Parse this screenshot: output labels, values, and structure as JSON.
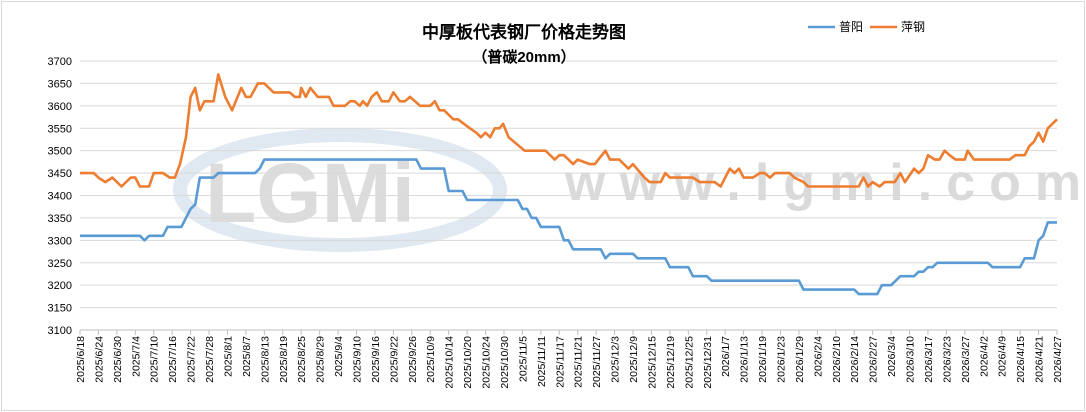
{
  "chart_data": {
    "type": "line",
    "title": "中厚板代表钢厂价格走势图",
    "subtitle": "（普碳20mm）",
    "xlabel": "",
    "ylabel": "",
    "ylim": [
      3100,
      3700
    ],
    "yticks": [
      3100,
      3150,
      3200,
      3250,
      3300,
      3350,
      3400,
      3450,
      3500,
      3550,
      3600,
      3650,
      3700
    ],
    "grid": true,
    "legend_position": "top-right",
    "x_point_count": 213,
    "categories": [
      "2025/6/18",
      "2025/6/24",
      "2025/6/30",
      "2025/7/4",
      "2025/7/10",
      "2025/7/16",
      "2025/7/22",
      "2025/7/28",
      "2025/8/1",
      "2025/8/7",
      "2025/8/13",
      "2025/8/19",
      "2025/8/25",
      "2025/8/29",
      "2025/9/4",
      "2025/9/10",
      "2025/9/16",
      "2025/9/22",
      "2025/9/26",
      "2025/10/9",
      "2025/10/14",
      "2025/10/20",
      "2025/10/24",
      "2025/10/30",
      "2025/11/5",
      "2025/11/11",
      "2025/11/17",
      "2025/11/21",
      "2025/11/27",
      "2025/12/3",
      "2025/12/9",
      "2025/12/15",
      "2025/12/19",
      "2025/12/25",
      "2025/12/31",
      "2026/1/7",
      "2026/1/13",
      "2026/1/19",
      "2026/1/23",
      "2026/1/29",
      "2026/2/4",
      "2026/2/10",
      "2026/2/14",
      "2026/2/27",
      "2026/3/4",
      "2026/3/10",
      "2026/3/17",
      "2026/3/23",
      "2026/3/27",
      "2026/4/2",
      "2026/4/9",
      "2026/4/15",
      "2026/4/21",
      "2026/4/27"
    ],
    "series": [
      {
        "name": "普阳",
        "color": "#5B9BD5",
        "points": [
          [
            0,
            3310
          ],
          [
            13,
            3310
          ],
          [
            14,
            3300
          ],
          [
            15,
            3310
          ],
          [
            18,
            3310
          ],
          [
            19,
            3330
          ],
          [
            22,
            3330
          ],
          [
            23,
            3350
          ],
          [
            24,
            3370
          ],
          [
            25,
            3380
          ],
          [
            26,
            3440
          ],
          [
            29,
            3440
          ],
          [
            30,
            3450
          ],
          [
            38,
            3450
          ],
          [
            39,
            3460
          ],
          [
            40,
            3480
          ],
          [
            73,
            3480
          ],
          [
            74,
            3460
          ],
          [
            79,
            3460
          ],
          [
            80,
            3410
          ],
          [
            83,
            3410
          ],
          [
            84,
            3390
          ],
          [
            95,
            3390
          ],
          [
            96,
            3370
          ],
          [
            97,
            3370
          ],
          [
            98,
            3350
          ],
          [
            99,
            3350
          ],
          [
            100,
            3330
          ],
          [
            104,
            3330
          ],
          [
            105,
            3300
          ],
          [
            106,
            3300
          ],
          [
            107,
            3280
          ],
          [
            113,
            3280
          ],
          [
            114,
            3260
          ],
          [
            115,
            3270
          ],
          [
            120,
            3270
          ],
          [
            121,
            3260
          ],
          [
            127,
            3260
          ],
          [
            128,
            3240
          ],
          [
            132,
            3240
          ],
          [
            133,
            3220
          ],
          [
            136,
            3220
          ],
          [
            137,
            3210
          ],
          [
            156,
            3210
          ],
          [
            157,
            3190
          ],
          [
            168,
            3190
          ],
          [
            169,
            3180
          ],
          [
            173,
            3180
          ],
          [
            174,
            3200
          ],
          [
            176,
            3200
          ],
          [
            177,
            3210
          ],
          [
            178,
            3220
          ],
          [
            181,
            3220
          ],
          [
            182,
            3230
          ],
          [
            183,
            3230
          ],
          [
            184,
            3240
          ],
          [
            185,
            3240
          ],
          [
            186,
            3250
          ],
          [
            197,
            3250
          ],
          [
            198,
            3240
          ],
          [
            204,
            3240
          ],
          [
            205,
            3260
          ],
          [
            207,
            3260
          ],
          [
            208,
            3300
          ],
          [
            209,
            3310
          ],
          [
            210,
            3340
          ],
          [
            212,
            3340
          ]
        ]
      },
      {
        "name": "萍钢",
        "color": "#ED7D31",
        "points": [
          [
            0,
            3450
          ],
          [
            3,
            3450
          ],
          [
            4,
            3440
          ],
          [
            5.5,
            3430
          ],
          [
            7,
            3440
          ],
          [
            9,
            3420
          ],
          [
            11,
            3440
          ],
          [
            12,
            3440
          ],
          [
            13,
            3420
          ],
          [
            15,
            3420
          ],
          [
            16,
            3450
          ],
          [
            18,
            3450
          ],
          [
            19.5,
            3440
          ],
          [
            20.6,
            3440
          ],
          [
            21.7,
            3470
          ],
          [
            23,
            3530
          ],
          [
            24,
            3620
          ],
          [
            25,
            3640
          ],
          [
            26,
            3590
          ],
          [
            27,
            3610
          ],
          [
            29,
            3610
          ],
          [
            30,
            3670
          ],
          [
            31.5,
            3620
          ],
          [
            33,
            3590
          ],
          [
            35,
            3640
          ],
          [
            36,
            3620
          ],
          [
            37,
            3620
          ],
          [
            38.6,
            3650
          ],
          [
            40,
            3650
          ],
          [
            42,
            3630
          ],
          [
            45.5,
            3630
          ],
          [
            46.6,
            3620
          ],
          [
            47.7,
            3620
          ],
          [
            48,
            3640
          ],
          [
            49,
            3620
          ],
          [
            50,
            3640
          ],
          [
            51.6,
            3620
          ],
          [
            54,
            3620
          ],
          [
            55,
            3600
          ],
          [
            57.5,
            3600
          ],
          [
            58.6,
            3610
          ],
          [
            59.6,
            3610
          ],
          [
            60.7,
            3600
          ],
          [
            61.4,
            3610
          ],
          [
            62.3,
            3600
          ],
          [
            63.3,
            3620
          ],
          [
            64.4,
            3630
          ],
          [
            65.5,
            3610
          ],
          [
            67,
            3610
          ],
          [
            68,
            3630
          ],
          [
            69.4,
            3610
          ],
          [
            70.5,
            3610
          ],
          [
            71.6,
            3620
          ],
          [
            73.8,
            3600
          ],
          [
            76,
            3600
          ],
          [
            77,
            3610
          ],
          [
            78,
            3590
          ],
          [
            79,
            3590
          ],
          [
            81,
            3570
          ],
          [
            82,
            3570
          ],
          [
            84.6,
            3550
          ],
          [
            86,
            3540
          ],
          [
            87,
            3530
          ],
          [
            88,
            3540
          ],
          [
            89,
            3530
          ],
          [
            90,
            3550
          ],
          [
            91,
            3550
          ],
          [
            91.8,
            3560
          ],
          [
            93,
            3530
          ],
          [
            96.5,
            3500
          ],
          [
            101,
            3500
          ],
          [
            103,
            3480
          ],
          [
            104,
            3490
          ],
          [
            105,
            3490
          ],
          [
            106,
            3480
          ],
          [
            107,
            3470
          ],
          [
            108,
            3480
          ],
          [
            110.6,
            3470
          ],
          [
            111.7,
            3470
          ],
          [
            114,
            3500
          ],
          [
            115,
            3480
          ],
          [
            117,
            3480
          ],
          [
            119,
            3460
          ],
          [
            120,
            3470
          ],
          [
            122.5,
            3440
          ],
          [
            123.6,
            3430
          ],
          [
            126,
            3430
          ],
          [
            127,
            3450
          ],
          [
            128,
            3440
          ],
          [
            133,
            3440
          ],
          [
            134.5,
            3430
          ],
          [
            137.7,
            3430
          ],
          [
            139,
            3420
          ],
          [
            141,
            3460
          ],
          [
            142,
            3450
          ],
          [
            143,
            3460
          ],
          [
            144,
            3440
          ],
          [
            146,
            3440
          ],
          [
            147.5,
            3450
          ],
          [
            148.6,
            3450
          ],
          [
            149.7,
            3440
          ],
          [
            150.8,
            3450
          ],
          [
            154,
            3450
          ],
          [
            155,
            3440
          ],
          [
            157,
            3430
          ],
          [
            158,
            3420
          ],
          [
            169,
            3420
          ],
          [
            170,
            3440
          ],
          [
            171,
            3420
          ],
          [
            172,
            3430
          ],
          [
            173.5,
            3420
          ],
          [
            174.6,
            3430
          ],
          [
            176.8,
            3430
          ],
          [
            178,
            3450
          ],
          [
            179,
            3430
          ],
          [
            181,
            3460
          ],
          [
            182,
            3450
          ],
          [
            183,
            3460
          ],
          [
            184,
            3490
          ],
          [
            185.5,
            3480
          ],
          [
            186.5,
            3480
          ],
          [
            187.6,
            3500
          ],
          [
            188.7,
            3490
          ],
          [
            190,
            3480
          ],
          [
            192,
            3480
          ],
          [
            192.6,
            3500
          ],
          [
            194,
            3480
          ],
          [
            201.7,
            3480
          ],
          [
            203,
            3490
          ],
          [
            205,
            3490
          ],
          [
            206,
            3510
          ],
          [
            207,
            3520
          ],
          [
            208,
            3540
          ],
          [
            209,
            3520
          ],
          [
            210,
            3550
          ],
          [
            212,
            3570
          ]
        ]
      }
    ]
  },
  "watermark": {
    "logo": "LGMi",
    "url": "www.lgmi.com"
  }
}
